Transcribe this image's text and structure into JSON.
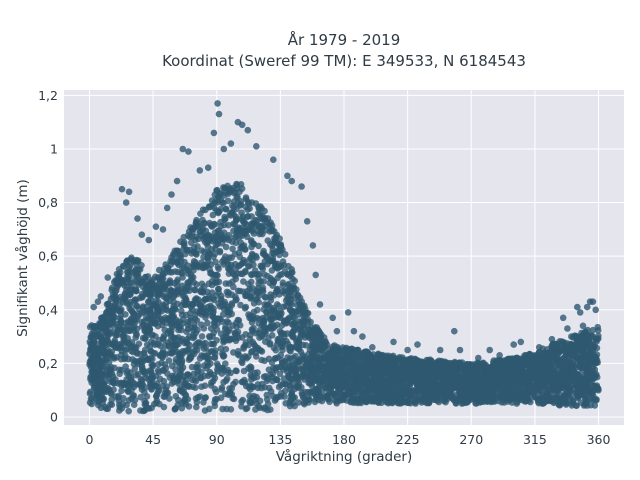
{
  "chart_data": {
    "type": "scatter",
    "title_lines": [
      "År 1979 - 2019",
      "Koordinat (Sweref 99 TM): E 349533, N 6184543"
    ],
    "xlabel": "Vågriktning (grader)",
    "ylabel": "Signifikant våghöjd (m)",
    "xlim": [
      -18,
      378
    ],
    "ylim": [
      -0.03,
      1.22
    ],
    "xticks": [
      0,
      45,
      90,
      135,
      180,
      225,
      270,
      315,
      360
    ],
    "xtick_labels": [
      "0",
      "45",
      "90",
      "135",
      "180",
      "225",
      "270",
      "315",
      "360"
    ],
    "yticks": [
      0,
      0.2,
      0.4,
      0.6,
      0.8,
      1,
      1.2
    ],
    "ytick_labels": [
      "0",
      "0,2",
      "0,4",
      "0,6",
      "0,8",
      "1",
      "1,2"
    ],
    "grid": true,
    "marker_color": "#2e5870",
    "plot_background": "#e5e5ee",
    "envelope": {
      "direction": [
        0,
        10,
        20,
        30,
        45,
        60,
        75,
        90,
        105,
        120,
        135,
        150,
        160,
        170,
        180,
        200,
        225,
        250,
        270,
        300,
        315,
        330,
        345,
        360
      ],
      "hs_lower": [
        0.04,
        0.03,
        0.02,
        0.02,
        0.02,
        0.02,
        0.02,
        0.02,
        0.02,
        0.02,
        0.03,
        0.04,
        0.04,
        0.05,
        0.05,
        0.05,
        0.05,
        0.05,
        0.05,
        0.05,
        0.05,
        0.04,
        0.04,
        0.04
      ],
      "hs_upper": [
        0.34,
        0.38,
        0.55,
        0.62,
        0.52,
        0.62,
        0.74,
        0.85,
        0.88,
        0.8,
        0.68,
        0.44,
        0.34,
        0.27,
        0.26,
        0.24,
        0.22,
        0.21,
        0.2,
        0.22,
        0.24,
        0.28,
        0.31,
        0.34
      ]
    },
    "outliers": [
      [
        90.6,
        1.17
      ],
      [
        91.6,
        1.13
      ],
      [
        105,
        1.1
      ],
      [
        108,
        1.09
      ],
      [
        112,
        1.07
      ],
      [
        88,
        1.06
      ],
      [
        66,
        1.0
      ],
      [
        70,
        0.99
      ],
      [
        95,
        1.0
      ],
      [
        100,
        1.02
      ],
      [
        118,
        1.01
      ],
      [
        23,
        0.85
      ],
      [
        28,
        0.84
      ],
      [
        26,
        0.8
      ],
      [
        58,
        0.83
      ],
      [
        62,
        0.88
      ],
      [
        78,
        0.92
      ],
      [
        84,
        0.93
      ],
      [
        130,
        0.96
      ],
      [
        140,
        0.9
      ],
      [
        143,
        0.88
      ],
      [
        150,
        0.86
      ],
      [
        47,
        0.71
      ],
      [
        52,
        0.7
      ],
      [
        154,
        0.73
      ],
      [
        158,
        0.64
      ],
      [
        160,
        0.53
      ],
      [
        163,
        0.42
      ],
      [
        172,
        0.37
      ],
      [
        175,
        0.32
      ],
      [
        183,
        0.39
      ],
      [
        187,
        0.32
      ],
      [
        193,
        0.3
      ],
      [
        200,
        0.26
      ],
      [
        215,
        0.28
      ],
      [
        225,
        0.25
      ],
      [
        232,
        0.27
      ],
      [
        248,
        0.25
      ],
      [
        258,
        0.32
      ],
      [
        262,
        0.25
      ],
      [
        275,
        0.22
      ],
      [
        283,
        0.25
      ],
      [
        290,
        0.23
      ],
      [
        300,
        0.27
      ],
      [
        305,
        0.28
      ],
      [
        318,
        0.26
      ],
      [
        327,
        0.29
      ],
      [
        335,
        0.37
      ],
      [
        338,
        0.33
      ],
      [
        343,
        0.3
      ],
      [
        345,
        0.41
      ],
      [
        347,
        0.39
      ],
      [
        349,
        0.34
      ],
      [
        352,
        0.41
      ],
      [
        354,
        0.43
      ],
      [
        356,
        0.43
      ],
      [
        358,
        0.4
      ],
      [
        3,
        0.41
      ],
      [
        6,
        0.43
      ],
      [
        13,
        0.52
      ],
      [
        8,
        0.45
      ],
      [
        34,
        0.74
      ],
      [
        37,
        0.68
      ],
      [
        42,
        0.66
      ],
      [
        55,
        0.78
      ]
    ]
  }
}
